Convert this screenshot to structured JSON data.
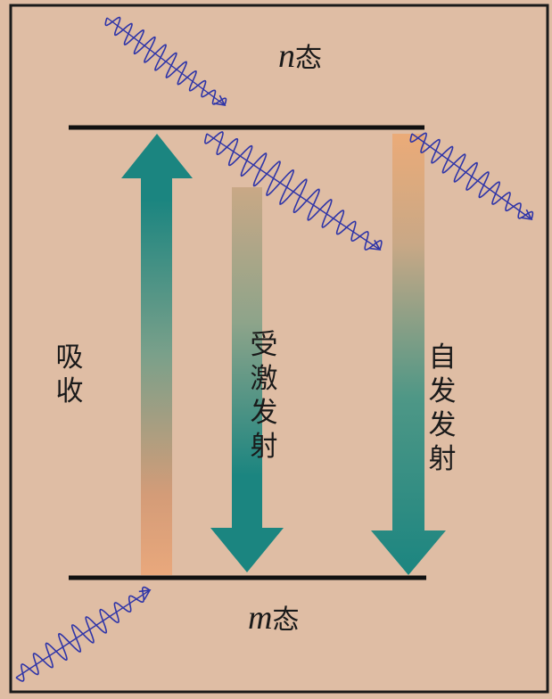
{
  "upper_level": {
    "symbol": "n",
    "suffix": "态"
  },
  "lower_level": {
    "symbol": "m",
    "suffix": "态"
  },
  "processes": [
    {
      "label": "吸收"
    },
    {
      "label": "受激发射"
    },
    {
      "label": "自发发射"
    }
  ],
  "colors": {
    "background": "#dfbda4",
    "frame": "#1a1a1a",
    "arrow_teal": "#1b8580",
    "arrow_orange": "#e9a87c",
    "photon": "#2f35a8"
  }
}
